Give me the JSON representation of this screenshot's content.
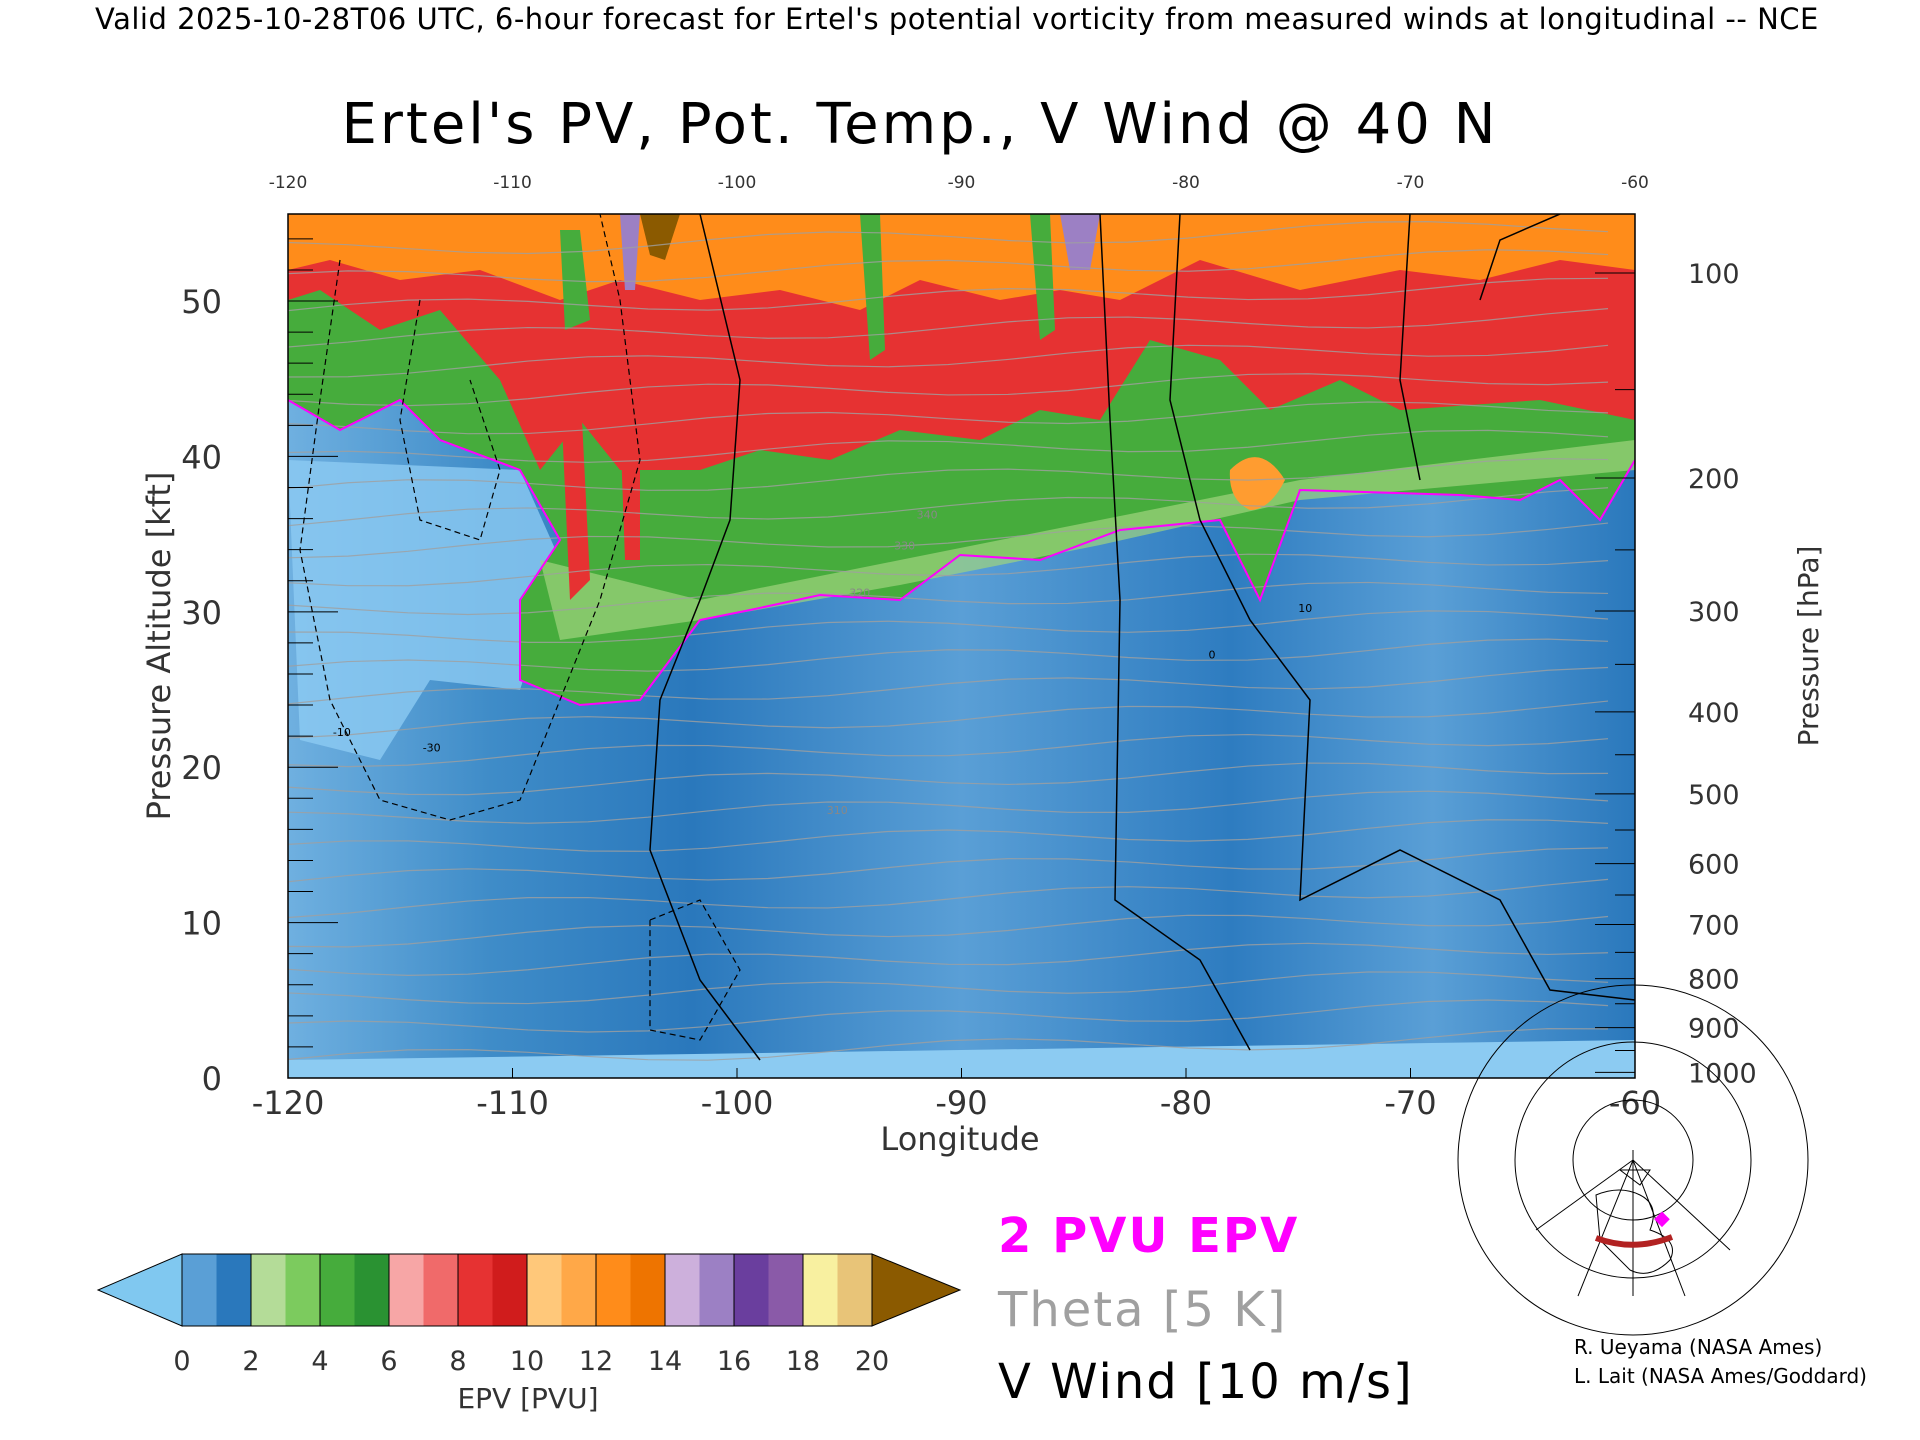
{
  "header": {
    "subtitle": "Valid 2025-10-28T06 UTC, 6-hour forecast for Ertel's potential vorticity from measured winds at longitudinal -- NCE",
    "title": "Ertel's PV, Pot. Temp., V Wind @ 40 N"
  },
  "chart_data": {
    "type": "heatmap",
    "title": "Ertel's PV, Pot. Temp., V Wind @ 40 N",
    "xlabel": "Longitude",
    "ylabel": "Pressure Altitude [kft]",
    "y2label": "Pressure [hPa]",
    "xlim": [
      -120,
      -60
    ],
    "ylim": [
      0,
      55.6
    ],
    "x_ticks": [
      "-120",
      "-110",
      "-100",
      "-90",
      "-80",
      "-70",
      "-60"
    ],
    "x_tick_values": [
      -120,
      -110,
      -100,
      -90,
      -80,
      -70,
      -60
    ],
    "y_ticks": [
      "0",
      "10",
      "20",
      "30",
      "40",
      "50"
    ],
    "y_tick_values": [
      0,
      10,
      20,
      30,
      40,
      50
    ],
    "pressure_ticks": [
      "100",
      "200",
      "300",
      "400",
      "500",
      "600",
      "700",
      "800",
      "900",
      "1000"
    ],
    "pressure_tick_values": [
      100,
      200,
      300,
      400,
      500,
      600,
      700,
      800,
      900,
      1000
    ],
    "colorbar": {
      "label": "EPV [PVU]",
      "ticks": [
        "0",
        "2",
        "4",
        "6",
        "8",
        "10",
        "12",
        "14",
        "16",
        "18",
        "20"
      ],
      "range": [
        0,
        20
      ],
      "colors": [
        "#5a9fd6",
        "#2a78bc",
        "#b4dc98",
        "#7ccb5e",
        "#46ac3c",
        "#2a9232",
        "#f7a6a6",
        "#f06a6a",
        "#e63232",
        "#d01c1c",
        "#ffc87a",
        "#ffa848",
        "#ff8c1a",
        "#ee7400",
        "#cdb0dc",
        "#9c80c4",
        "#6a3e9e",
        "#8a5aa8",
        "#f8f0a0",
        "#e8c478"
      ],
      "under_color": "#80c8f0",
      "over_color": "#8b5a00"
    },
    "legend": {
      "pv_label": "2 PVU EPV",
      "theta_label": "Theta [5 K]",
      "wind_label": "V Wind [10 m/s]",
      "pv_color": "#ff00ff",
      "theta_color": "#a0a0a0",
      "wind_color": "#000000"
    },
    "theta_labels": [
      "320",
      "330",
      "340",
      "310"
    ],
    "wind_labels": [
      "10",
      "0",
      "-10",
      "-30"
    ]
  },
  "credits": {
    "line1": "R. Ueyama (NASA Ames)",
    "line2": "L. Lait (NASA Ames/Goddard)"
  }
}
